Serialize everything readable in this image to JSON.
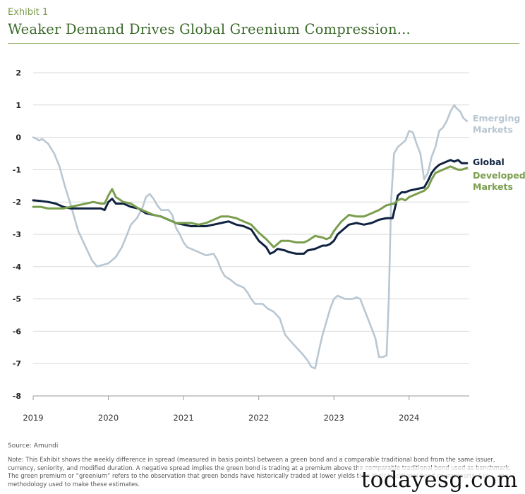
{
  "header": {
    "exhibit_label": "Exhibit 1",
    "title": "Weaker Demand Drives Global Greenium Compression..."
  },
  "footer": {
    "source": "Source: Amundi",
    "note": "Note: This Exhibit shows the weekly difference in spread (measured in basis points) between a green bond and a comparable traditional bond from the same issuer, currency, seniority, and modified duration. A negative spread implies the green bond is trading at a premium above the comparable traditional bond used as benchmark. The green premium or “greenium” refers to the observation that green bonds have historically traded at lower yields than their traditional bond counterparts. See ... the methodology used to make these estimates."
  },
  "watermark": "todayesg.com",
  "chart_data": {
    "type": "line",
    "title": "Weaker Demand Drives Global Greenium Compression...",
    "xlabel": "",
    "ylabel": "",
    "xlim": [
      2019.0,
      2024.8
    ],
    "ylim": [
      -8,
      2
    ],
    "yticks": [
      "2",
      "1",
      "0",
      "-1",
      "-2",
      "-3",
      "-4",
      "-5",
      "-6",
      "-7",
      "-8"
    ],
    "xticks": [
      "2019",
      "2020",
      "2021",
      "2022",
      "2023",
      "2024"
    ],
    "grid": true,
    "legend_placement": "right, inline labels",
    "series": [
      {
        "name": "Emerging Markets",
        "label_lines": [
          "Emerging",
          "Markets"
        ],
        "color": "#b8c7d3",
        "points": [
          [
            2019.0,
            0.0
          ],
          [
            2019.05,
            -0.05
          ],
          [
            2019.08,
            -0.1
          ],
          [
            2019.12,
            -0.05
          ],
          [
            2019.2,
            -0.2
          ],
          [
            2019.28,
            -0.5
          ],
          [
            2019.35,
            -0.9
          ],
          [
            2019.42,
            -1.5
          ],
          [
            2019.5,
            -2.1
          ],
          [
            2019.6,
            -2.9
          ],
          [
            2019.7,
            -3.4
          ],
          [
            2019.78,
            -3.8
          ],
          [
            2019.85,
            -4.0
          ],
          [
            2019.92,
            -3.95
          ],
          [
            2020.0,
            -3.9
          ],
          [
            2020.05,
            -3.8
          ],
          [
            2020.1,
            -3.7
          ],
          [
            2020.18,
            -3.4
          ],
          [
            2020.25,
            -3.0
          ],
          [
            2020.3,
            -2.7
          ],
          [
            2020.38,
            -2.5
          ],
          [
            2020.45,
            -2.2
          ],
          [
            2020.5,
            -1.85
          ],
          [
            2020.55,
            -1.75
          ],
          [
            2020.6,
            -1.9
          ],
          [
            2020.65,
            -2.1
          ],
          [
            2020.7,
            -2.25
          ],
          [
            2020.8,
            -2.25
          ],
          [
            2020.85,
            -2.4
          ],
          [
            2020.9,
            -2.8
          ],
          [
            2020.95,
            -3.0
          ],
          [
            2021.0,
            -3.25
          ],
          [
            2021.05,
            -3.4
          ],
          [
            2021.15,
            -3.5
          ],
          [
            2021.25,
            -3.6
          ],
          [
            2021.3,
            -3.65
          ],
          [
            2021.4,
            -3.6
          ],
          [
            2021.45,
            -3.8
          ],
          [
            2021.5,
            -4.1
          ],
          [
            2021.55,
            -4.3
          ],
          [
            2021.62,
            -4.4
          ],
          [
            2021.7,
            -4.55
          ],
          [
            2021.8,
            -4.65
          ],
          [
            2021.85,
            -4.8
          ],
          [
            2021.9,
            -5.0
          ],
          [
            2021.95,
            -5.15
          ],
          [
            2022.05,
            -5.15
          ],
          [
            2022.12,
            -5.3
          ],
          [
            2022.2,
            -5.4
          ],
          [
            2022.28,
            -5.6
          ],
          [
            2022.35,
            -6.1
          ],
          [
            2022.42,
            -6.3
          ],
          [
            2022.5,
            -6.5
          ],
          [
            2022.58,
            -6.7
          ],
          [
            2022.65,
            -6.9
          ],
          [
            2022.7,
            -7.1
          ],
          [
            2022.75,
            -7.15
          ],
          [
            2022.8,
            -6.6
          ],
          [
            2022.85,
            -6.1
          ],
          [
            2022.9,
            -5.7
          ],
          [
            2022.95,
            -5.3
          ],
          [
            2023.0,
            -5.0
          ],
          [
            2023.05,
            -4.9
          ],
          [
            2023.1,
            -4.95
          ],
          [
            2023.15,
            -5.0
          ],
          [
            2023.25,
            -5.0
          ],
          [
            2023.3,
            -4.95
          ],
          [
            2023.35,
            -5.0
          ],
          [
            2023.4,
            -5.3
          ],
          [
            2023.45,
            -5.6
          ],
          [
            2023.5,
            -5.9
          ],
          [
            2023.55,
            -6.2
          ],
          [
            2023.6,
            -6.8
          ],
          [
            2023.65,
            -6.8
          ],
          [
            2023.7,
            -6.75
          ],
          [
            2023.73,
            -5.0
          ],
          [
            2023.76,
            -2.0
          ],
          [
            2023.8,
            -0.5
          ],
          [
            2023.85,
            -0.3
          ],
          [
            2023.9,
            -0.2
          ],
          [
            2023.95,
            -0.1
          ],
          [
            2024.0,
            0.2
          ],
          [
            2024.05,
            0.15
          ],
          [
            2024.1,
            -0.2
          ],
          [
            2024.15,
            -0.5
          ],
          [
            2024.2,
            -1.3
          ],
          [
            2024.25,
            -1.1
          ],
          [
            2024.3,
            -0.6
          ],
          [
            2024.35,
            -0.3
          ],
          [
            2024.4,
            0.2
          ],
          [
            2024.45,
            0.3
          ],
          [
            2024.5,
            0.5
          ],
          [
            2024.55,
            0.8
          ],
          [
            2024.6,
            1.0
          ],
          [
            2024.63,
            0.9
          ],
          [
            2024.68,
            0.8
          ],
          [
            2024.72,
            0.6
          ],
          [
            2024.77,
            0.5
          ]
        ]
      },
      {
        "name": "Global",
        "label_lines": [
          "Global"
        ],
        "color": "#0f2240",
        "points": [
          [
            2019.0,
            -1.95
          ],
          [
            2019.1,
            -1.97
          ],
          [
            2019.2,
            -2.0
          ],
          [
            2019.3,
            -2.05
          ],
          [
            2019.4,
            -2.15
          ],
          [
            2019.5,
            -2.2
          ],
          [
            2019.6,
            -2.2
          ],
          [
            2019.7,
            -2.2
          ],
          [
            2019.8,
            -2.2
          ],
          [
            2019.9,
            -2.2
          ],
          [
            2019.95,
            -2.25
          ],
          [
            2020.0,
            -2.0
          ],
          [
            2020.05,
            -1.9
          ],
          [
            2020.1,
            -2.05
          ],
          [
            2020.2,
            -2.05
          ],
          [
            2020.3,
            -2.15
          ],
          [
            2020.4,
            -2.2
          ],
          [
            2020.5,
            -2.35
          ],
          [
            2020.6,
            -2.4
          ],
          [
            2020.7,
            -2.45
          ],
          [
            2020.8,
            -2.55
          ],
          [
            2020.9,
            -2.65
          ],
          [
            2021.0,
            -2.7
          ],
          [
            2021.1,
            -2.75
          ],
          [
            2021.2,
            -2.75
          ],
          [
            2021.3,
            -2.75
          ],
          [
            2021.4,
            -2.7
          ],
          [
            2021.5,
            -2.65
          ],
          [
            2021.6,
            -2.6
          ],
          [
            2021.7,
            -2.7
          ],
          [
            2021.8,
            -2.75
          ],
          [
            2021.9,
            -2.85
          ],
          [
            2022.0,
            -3.2
          ],
          [
            2022.1,
            -3.4
          ],
          [
            2022.15,
            -3.6
          ],
          [
            2022.2,
            -3.55
          ],
          [
            2022.25,
            -3.45
          ],
          [
            2022.35,
            -3.5
          ],
          [
            2022.4,
            -3.55
          ],
          [
            2022.5,
            -3.6
          ],
          [
            2022.6,
            -3.6
          ],
          [
            2022.65,
            -3.5
          ],
          [
            2022.75,
            -3.45
          ],
          [
            2022.85,
            -3.35
          ],
          [
            2022.9,
            -3.35
          ],
          [
            2022.95,
            -3.3
          ],
          [
            2023.0,
            -3.2
          ],
          [
            2023.05,
            -3.0
          ],
          [
            2023.1,
            -2.9
          ],
          [
            2023.2,
            -2.7
          ],
          [
            2023.3,
            -2.65
          ],
          [
            2023.4,
            -2.7
          ],
          [
            2023.5,
            -2.65
          ],
          [
            2023.55,
            -2.6
          ],
          [
            2023.6,
            -2.55
          ],
          [
            2023.7,
            -2.5
          ],
          [
            2023.78,
            -2.5
          ],
          [
            2023.82,
            -2.1
          ],
          [
            2023.85,
            -1.8
          ],
          [
            2023.9,
            -1.7
          ],
          [
            2023.95,
            -1.7
          ],
          [
            2024.0,
            -1.65
          ],
          [
            2024.1,
            -1.6
          ],
          [
            2024.2,
            -1.55
          ],
          [
            2024.25,
            -1.35
          ],
          [
            2024.3,
            -1.1
          ],
          [
            2024.35,
            -0.95
          ],
          [
            2024.4,
            -0.85
          ],
          [
            2024.5,
            -0.75
          ],
          [
            2024.55,
            -0.7
          ],
          [
            2024.6,
            -0.75
          ],
          [
            2024.65,
            -0.7
          ],
          [
            2024.7,
            -0.8
          ],
          [
            2024.77,
            -0.8
          ]
        ]
      },
      {
        "name": "Developed Markets",
        "label_lines": [
          "Developed",
          "Markets"
        ],
        "color": "#7a9e4e",
        "points": [
          [
            2019.0,
            -2.15
          ],
          [
            2019.1,
            -2.15
          ],
          [
            2019.2,
            -2.2
          ],
          [
            2019.3,
            -2.2
          ],
          [
            2019.4,
            -2.2
          ],
          [
            2019.5,
            -2.15
          ],
          [
            2019.6,
            -2.1
          ],
          [
            2019.7,
            -2.05
          ],
          [
            2019.8,
            -2.0
          ],
          [
            2019.9,
            -2.05
          ],
          [
            2019.95,
            -2.05
          ],
          [
            2020.0,
            -1.8
          ],
          [
            2020.05,
            -1.6
          ],
          [
            2020.1,
            -1.85
          ],
          [
            2020.2,
            -2.0
          ],
          [
            2020.3,
            -2.05
          ],
          [
            2020.4,
            -2.2
          ],
          [
            2020.5,
            -2.3
          ],
          [
            2020.6,
            -2.4
          ],
          [
            2020.7,
            -2.45
          ],
          [
            2020.8,
            -2.55
          ],
          [
            2020.9,
            -2.65
          ],
          [
            2021.0,
            -2.65
          ],
          [
            2021.1,
            -2.65
          ],
          [
            2021.2,
            -2.7
          ],
          [
            2021.3,
            -2.65
          ],
          [
            2021.4,
            -2.55
          ],
          [
            2021.5,
            -2.45
          ],
          [
            2021.6,
            -2.45
          ],
          [
            2021.7,
            -2.5
          ],
          [
            2021.8,
            -2.6
          ],
          [
            2021.9,
            -2.7
          ],
          [
            2022.0,
            -2.95
          ],
          [
            2022.1,
            -3.15
          ],
          [
            2022.2,
            -3.4
          ],
          [
            2022.25,
            -3.3
          ],
          [
            2022.3,
            -3.2
          ],
          [
            2022.4,
            -3.2
          ],
          [
            2022.5,
            -3.25
          ],
          [
            2022.6,
            -3.25
          ],
          [
            2022.65,
            -3.2
          ],
          [
            2022.75,
            -3.05
          ],
          [
            2022.85,
            -3.1
          ],
          [
            2022.9,
            -3.15
          ],
          [
            2022.95,
            -3.1
          ],
          [
            2023.0,
            -2.9
          ],
          [
            2023.05,
            -2.75
          ],
          [
            2023.1,
            -2.6
          ],
          [
            2023.2,
            -2.4
          ],
          [
            2023.3,
            -2.45
          ],
          [
            2023.4,
            -2.45
          ],
          [
            2023.5,
            -2.35
          ],
          [
            2023.6,
            -2.25
          ],
          [
            2023.7,
            -2.1
          ],
          [
            2023.8,
            -2.05
          ],
          [
            2023.85,
            -1.95
          ],
          [
            2023.9,
            -1.9
          ],
          [
            2023.95,
            -1.95
          ],
          [
            2024.0,
            -1.85
          ],
          [
            2024.1,
            -1.75
          ],
          [
            2024.2,
            -1.65
          ],
          [
            2024.25,
            -1.55
          ],
          [
            2024.3,
            -1.3
          ],
          [
            2024.35,
            -1.1
          ],
          [
            2024.4,
            -1.05
          ],
          [
            2024.5,
            -0.95
          ],
          [
            2024.55,
            -0.9
          ],
          [
            2024.6,
            -0.95
          ],
          [
            2024.65,
            -1.0
          ],
          [
            2024.7,
            -1.0
          ],
          [
            2024.77,
            -0.95
          ]
        ]
      }
    ]
  }
}
